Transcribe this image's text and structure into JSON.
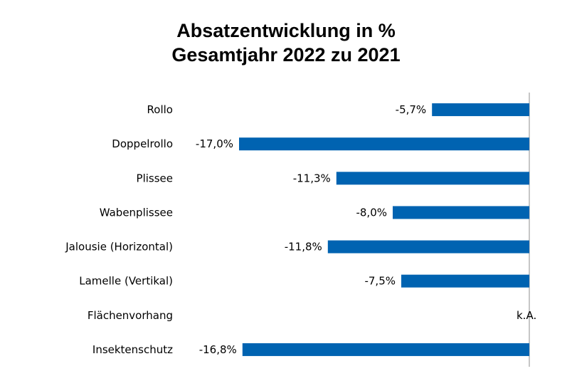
{
  "chart_data": {
    "type": "bar",
    "orientation": "horizontal",
    "title": [
      "Absatzentwicklung in %",
      "Gesamtjahr 2022 zu 2021"
    ],
    "xlabel": "",
    "ylabel": "",
    "xlim": [
      -17.5,
      0
    ],
    "grid": false,
    "legend": "none",
    "bar_color": "#0063b1",
    "categories": [
      "Rollo",
      "Doppelrollo",
      "Plissee",
      "Wabenplissee",
      "Jalousie (Horizontal)",
      "Lamelle (Vertikal)",
      "Flächenvorhang",
      "Insektenschutz"
    ],
    "values": [
      -5.7,
      -17.0,
      -11.3,
      -8.0,
      -11.8,
      -7.5,
      null,
      -16.8
    ],
    "data_labels": [
      "-5,7%",
      "-17,0%",
      "-11,3%",
      "-8,0%",
      "-11,8%",
      "-7,5%",
      "k.A.",
      "-16,8%"
    ]
  }
}
